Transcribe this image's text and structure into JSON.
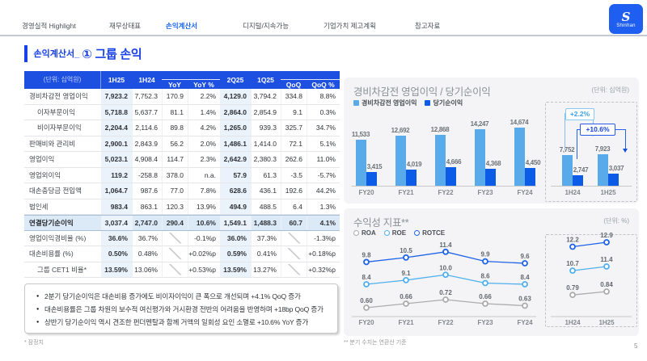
{
  "nav": {
    "tabs": [
      {
        "label": "경영실적 Highlight",
        "active": false
      },
      {
        "label": "재무상태표",
        "active": false
      },
      {
        "label": "손익계산서",
        "active": true
      },
      {
        "label": "디지털/지속가능",
        "active": false
      },
      {
        "label": "기업가치 제고계획",
        "active": false
      },
      {
        "label": "참고자료",
        "active": false
      }
    ]
  },
  "logo": {
    "brand": "Shinhan",
    "symbol": "S"
  },
  "page": {
    "title_prefix": "손익계산서_",
    "title_main": "① 그룹 손익",
    "footnote_left": "* 잠정치",
    "footnote_right": "** 분기 수치는 연환산 기준",
    "number": "5"
  },
  "table": {
    "unit_label": "(단위: 십억원)",
    "columns": [
      "1H25",
      "1H24",
      "YoY",
      "YoY %",
      "2Q25",
      "1Q25",
      "QoQ",
      "QoQ %"
    ],
    "rows": [
      {
        "label": "경비차감전 영업이익",
        "values": [
          "7,923.2",
          "7,752.3",
          "170.9",
          "2.2%",
          "4,129.0",
          "3,794.2",
          "334.8",
          "8.8%"
        ]
      },
      {
        "label": "이자부문이익",
        "indent": true,
        "values": [
          "5,718.8",
          "5,637.7",
          "81.1",
          "1.4%",
          "2,864.0",
          "2,854.9",
          "9.1",
          "0.3%"
        ]
      },
      {
        "label": "비이자부문이익",
        "indent": true,
        "values": [
          "2,204.4",
          "2,114.6",
          "89.8",
          "4.2%",
          "1,265.0",
          "939.3",
          "325.7",
          "34.7%"
        ]
      },
      {
        "label": "판매비와 관리비",
        "values": [
          "2,900.1",
          "2,843.9",
          "56.2",
          "2.0%",
          "1,486.1",
          "1,414.0",
          "72.1",
          "5.1%"
        ]
      },
      {
        "label": "영업이익",
        "values": [
          "5,023.1",
          "4,908.4",
          "114.7",
          "2.3%",
          "2,642.9",
          "2,380.3",
          "262.6",
          "11.0%"
        ]
      },
      {
        "label": "영업외이익",
        "values": [
          "119.2",
          "-258.8",
          "378.0",
          "n.a.",
          "57.9",
          "61.3",
          "-3.5",
          "-5.7%"
        ]
      },
      {
        "label": "대손충당금 전입액",
        "values": [
          "1,064.7",
          "987.6",
          "77.0",
          "7.8%",
          "628.6",
          "436.1",
          "192.6",
          "44.2%"
        ]
      },
      {
        "label": "법인세",
        "values": [
          "983.4",
          "863.1",
          "120.3",
          "13.9%",
          "494.9",
          "488.5",
          "6.4",
          "1.3%"
        ]
      },
      {
        "label": "연결당기순이익",
        "highlight": true,
        "values": [
          "3,037.4",
          "2,747.0",
          "290.4",
          "10.6%",
          "1,549.1",
          "1,488.3",
          "60.7",
          "4.1%"
        ]
      },
      {
        "label": "영업이익경비율 (%)",
        "slash": [
          2,
          6
        ],
        "values": [
          "36.6%",
          "36.7%",
          "",
          "-0.1%p",
          "36.0%",
          "37.3%",
          "",
          "-1.3%p"
        ]
      },
      {
        "label": "대손비용률 (%)",
        "slash": [
          2,
          6
        ],
        "values": [
          "0.50%",
          "0.48%",
          "",
          "+0.02%p",
          "0.59%",
          "0.41%",
          "",
          "+0.18%p"
        ]
      },
      {
        "label": "그룹 CET1 비율*",
        "indent": true,
        "slash": [
          2,
          6
        ],
        "values": [
          "13.59%",
          "13.06%",
          "",
          "+0.53%p",
          "13.59%",
          "13.27%",
          "",
          "+0.32%p"
        ]
      }
    ]
  },
  "bullets": [
    "2분기 당기순이익은 대손비용 증가에도 비이자이익이 큰 폭으로 개선되며 +4.1% QoQ 증가",
    "대손비용률은 그룹 차원의 보수적 여신평가와 거시환경 전반의 어려움을 반영하며 +18bp QoQ 증가",
    "상반기 당기순이익 역시 견조한 펀더멘탈과 함께 거액의 일회성 요인 소멸로 +10.6% YoY 증가"
  ],
  "chart_data": [
    {
      "type": "bar",
      "title": "경비차감전 영업이익 / 당기순이익",
      "unit": "(단위: 십억원)",
      "legend_position": "top-left",
      "categories": [
        "FY20",
        "FY21",
        "FY22",
        "FY23",
        "FY24"
      ],
      "half_categories": [
        "1H24",
        "1H25"
      ],
      "series": [
        {
          "name": "경비차감전 영업이익",
          "color": "#58aaeb",
          "values": [
            11533,
            12692,
            12868,
            14247,
            14674
          ],
          "labels": [
            "11,533",
            "12,692",
            "12,868",
            "14,247",
            "14,674"
          ],
          "half_values": [
            7752,
            7923
          ],
          "half_labels": [
            "7,752",
            "7,923"
          ]
        },
        {
          "name": "당기순이익",
          "color": "#0c5ce8",
          "values": [
            3415,
            4019,
            4666,
            4368,
            4450
          ],
          "labels": [
            "3,415",
            "4,019",
            "4,666",
            "4,368",
            "4,450"
          ],
          "half_values": [
            2747,
            3037
          ],
          "half_labels": [
            "2,747",
            "3,037"
          ]
        }
      ],
      "callouts": [
        {
          "label": "+2.2%",
          "applies_to": "경비차감전 영업이익 1H24→1H25"
        },
        {
          "label": "+10.6%",
          "applies_to": "당기순이익 1H24→1H25"
        }
      ]
    },
    {
      "type": "line",
      "title": "수익성 지표**",
      "unit": "(단위: %)",
      "legend_position": "top-left",
      "categories": [
        "FY20",
        "FY21",
        "FY22",
        "FY23",
        "FY24"
      ],
      "half_categories": [
        "1H24",
        "1H25"
      ],
      "series": [
        {
          "name": "ROA",
          "color": "#acacac",
          "values": [
            0.6,
            0.66,
            0.72,
            0.66,
            0.63
          ],
          "labels": [
            "0.60",
            "0.66",
            "0.72",
            "0.66",
            "0.63"
          ],
          "half_values": [
            0.79,
            0.84
          ],
          "half_labels": [
            "0.79",
            "0.84"
          ]
        },
        {
          "name": "ROE",
          "color": "#4fb0ee",
          "values": [
            8.4,
            9.1,
            10.0,
            8.6,
            8.4
          ],
          "labels": [
            "8.4",
            "9.1",
            "10.0",
            "8.6",
            "8.4"
          ],
          "half_values": [
            10.7,
            11.4
          ],
          "half_labels": [
            "10.7",
            "11.4"
          ]
        },
        {
          "name": "ROTCE",
          "color": "#1e63e8",
          "values": [
            9.8,
            10.5,
            11.4,
            9.9,
            9.6
          ],
          "labels": [
            "9.8",
            "10.5",
            "11.4",
            "9.9",
            "9.6"
          ],
          "half_values": [
            12.2,
            12.9
          ],
          "half_labels": [
            "12.2",
            "12.9"
          ]
        }
      ]
    }
  ]
}
